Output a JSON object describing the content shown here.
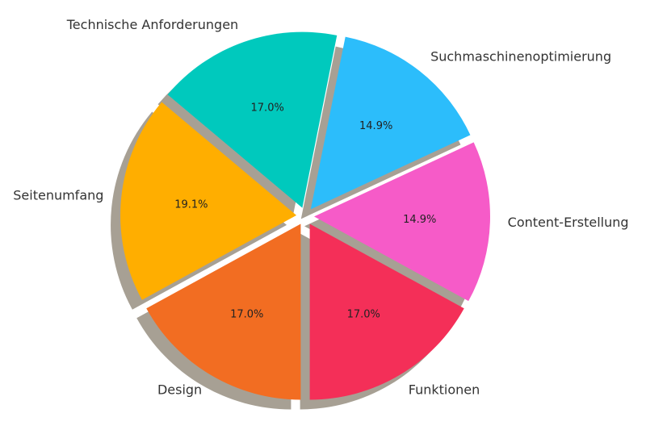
{
  "chart_data": {
    "type": "pie",
    "categories": [
      "Funktionen",
      "Content-Erstellung",
      "Suchmaschinenoptimierung",
      "Technische Anforderungen",
      "Seitenumfang",
      "Design"
    ],
    "values": [
      17.0,
      14.9,
      14.9,
      17.0,
      19.1,
      17.0
    ],
    "value_labels": [
      "17.0%",
      "14.9%",
      "14.9%",
      "17.0%",
      "19.1%",
      "17.0%"
    ],
    "colors": [
      "#f42f58",
      "#f65bc8",
      "#2cbdfb",
      "#00c9bd",
      "#ffae00",
      "#f26d22"
    ],
    "shadow": true
  }
}
